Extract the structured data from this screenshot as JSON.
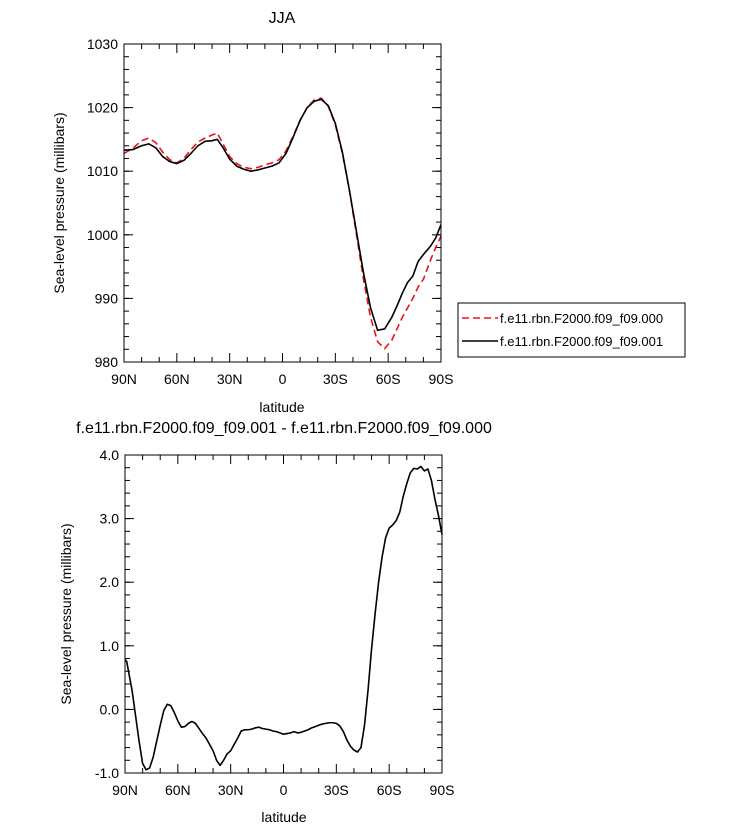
{
  "chart_data": [
    {
      "type": "line",
      "title": "JJA",
      "xlabel": "latitude",
      "ylabel": "Sea-level pressure (millibars)",
      "xlim": [
        90,
        -90
      ],
      "ylim": [
        980,
        1030
      ],
      "xticks": [
        {
          "value": 90,
          "label": "90N"
        },
        {
          "value": 60,
          "label": "60N"
        },
        {
          "value": 30,
          "label": "30N"
        },
        {
          "value": 0,
          "label": "0"
        },
        {
          "value": -30,
          "label": "30S"
        },
        {
          "value": -60,
          "label": "60S"
        },
        {
          "value": -90,
          "label": "90S"
        }
      ],
      "yticks": [
        980,
        990,
        1000,
        1010,
        1020,
        1030
      ],
      "legend_position": "right",
      "series": [
        {
          "name": "f.e11.rbn.F2000.f09_f09.000",
          "color": "#e8141b",
          "dash": "dashed",
          "x": [
            90,
            85,
            80,
            76,
            72,
            68,
            64,
            60,
            56,
            52,
            48,
            44,
            40,
            37,
            34,
            30,
            26,
            22,
            18,
            14,
            10,
            6,
            2,
            -2,
            -6,
            -10,
            -14,
            -18,
            -22,
            -26,
            -30,
            -34,
            -38,
            -42,
            -46,
            -50,
            -54,
            -58,
            -62,
            -65,
            -68,
            -71,
            -74,
            -77,
            -80,
            -84,
            -87,
            -90
          ],
          "values": [
            1012.8,
            1013.6,
            1014.8,
            1015.2,
            1014.5,
            1013.0,
            1011.8,
            1011.3,
            1012.0,
            1013.4,
            1014.6,
            1015.2,
            1015.7,
            1016.0,
            1014.4,
            1012.3,
            1011.2,
            1010.6,
            1010.4,
            1010.6,
            1011.0,
            1011.3,
            1011.8,
            1013.2,
            1015.5,
            1018.0,
            1020.0,
            1021.2,
            1021.5,
            1020.2,
            1017.3,
            1012.8,
            1007.0,
            1000.0,
            993.0,
            987.0,
            983.2,
            982.1,
            983.4,
            985.2,
            987.0,
            988.5,
            990.0,
            991.8,
            993.0,
            996.0,
            998.0,
            999.8
          ]
        },
        {
          "name": "f.e11.rbn.F2000.f09_f09.001",
          "color": "#000000",
          "dash": "solid",
          "x": [
            90,
            85,
            80,
            76,
            72,
            68,
            64,
            60,
            56,
            52,
            48,
            44,
            40,
            37,
            34,
            30,
            26,
            22,
            18,
            14,
            10,
            6,
            2,
            -2,
            -6,
            -10,
            -14,
            -18,
            -22,
            -26,
            -30,
            -34,
            -38,
            -42,
            -46,
            -50,
            -54,
            -58,
            -62,
            -65,
            -68,
            -71,
            -74,
            -77,
            -80,
            -84,
            -87,
            -90
          ],
          "values": [
            1013.3,
            1013.4,
            1014.0,
            1014.3,
            1013.7,
            1012.3,
            1011.5,
            1011.2,
            1011.7,
            1012.8,
            1014.0,
            1014.7,
            1014.8,
            1015.0,
            1013.8,
            1011.9,
            1010.8,
            1010.3,
            1010.0,
            1010.2,
            1010.5,
            1010.8,
            1011.3,
            1012.8,
            1015.3,
            1018.0,
            1020.0,
            1021.0,
            1021.3,
            1020.3,
            1017.5,
            1013.0,
            1007.0,
            1000.5,
            994.0,
            988.5,
            985.0,
            985.2,
            987.0,
            988.8,
            990.8,
            992.5,
            993.5,
            995.8,
            996.9,
            998.2,
            999.5,
            1001.6
          ]
        }
      ]
    },
    {
      "type": "line",
      "title": "f.e11.rbn.F2000.f09_f09.001 - f.e11.rbn.F2000.f09_f09.000",
      "xlabel": "latitude",
      "ylabel": "Sea-level pressure (millibars)",
      "xlim": [
        90,
        -90
      ],
      "ylim": [
        -1.0,
        4.0
      ],
      "xticks": [
        {
          "value": 90,
          "label": "90N"
        },
        {
          "value": 60,
          "label": "60N"
        },
        {
          "value": 30,
          "label": "30N"
        },
        {
          "value": 0,
          "label": "0"
        },
        {
          "value": -30,
          "label": "30S"
        },
        {
          "value": -60,
          "label": "60S"
        },
        {
          "value": -90,
          "label": "90S"
        }
      ],
      "yticks": [
        "-1.0",
        "0.0",
        "1.0",
        "2.0",
        "3.0",
        "4.0"
      ],
      "series": [
        {
          "color": "#000000",
          "dash": "solid",
          "x": [
            90,
            89,
            88,
            86,
            84,
            82,
            80,
            78,
            76,
            74,
            72,
            70,
            68,
            66,
            64,
            62,
            60,
            58,
            56,
            54,
            52,
            50,
            48,
            46,
            44,
            42,
            40,
            38,
            36,
            34,
            32,
            30,
            28,
            26,
            24,
            22,
            20,
            18,
            16,
            14,
            12,
            10,
            8,
            6,
            4,
            2,
            0,
            -2,
            -4,
            -6,
            -8,
            -10,
            -12,
            -14,
            -16,
            -18,
            -20,
            -22,
            -24,
            -26,
            -28,
            -30,
            -32,
            -34,
            -36,
            -38,
            -40,
            -42,
            -44,
            -46,
            -48,
            -50,
            -52,
            -54,
            -56,
            -58,
            -60,
            -62,
            -64,
            -66,
            -68,
            -70,
            -72,
            -74,
            -76,
            -78,
            -80,
            -82,
            -84,
            -86,
            -88,
            -90
          ],
          "values": [
            0.78,
            0.75,
            0.6,
            0.3,
            -0.1,
            -0.5,
            -0.85,
            -0.95,
            -0.92,
            -0.75,
            -0.5,
            -0.25,
            -0.02,
            0.08,
            0.06,
            -0.05,
            -0.18,
            -0.28,
            -0.27,
            -0.22,
            -0.19,
            -0.22,
            -0.3,
            -0.38,
            -0.45,
            -0.55,
            -0.65,
            -0.8,
            -0.88,
            -0.8,
            -0.7,
            -0.65,
            -0.55,
            -0.45,
            -0.34,
            -0.32,
            -0.32,
            -0.31,
            -0.29,
            -0.28,
            -0.3,
            -0.31,
            -0.32,
            -0.34,
            -0.35,
            -0.37,
            -0.39,
            -0.38,
            -0.37,
            -0.35,
            -0.37,
            -0.36,
            -0.34,
            -0.32,
            -0.29,
            -0.27,
            -0.25,
            -0.23,
            -0.22,
            -0.21,
            -0.21,
            -0.22,
            -0.26,
            -0.35,
            -0.48,
            -0.58,
            -0.64,
            -0.67,
            -0.6,
            -0.25,
            0.3,
            0.95,
            1.5,
            2.0,
            2.4,
            2.7,
            2.85,
            2.9,
            2.97,
            3.1,
            3.35,
            3.55,
            3.72,
            3.79,
            3.78,
            3.82,
            3.75,
            3.78,
            3.6,
            3.3,
            3.05,
            2.75
          ]
        }
      ]
    }
  ]
}
